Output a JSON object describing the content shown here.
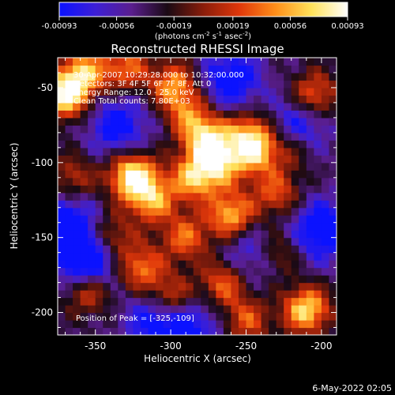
{
  "chart_data": {
    "type": "heatmap",
    "title": "Reconstructed RHESSI Image",
    "xlabel": "Heliocentric X (arcsec)",
    "ylabel": "Heliocentric Y (arcsec)",
    "xlim": [
      -375,
      -190
    ],
    "ylim": [
      -215,
      -30
    ],
    "x_ticks": [
      -350,
      -300,
      -250,
      -200
    ],
    "y_ticks": [
      -50,
      -100,
      -150,
      -200
    ],
    "colorbar": {
      "ticks": [
        "-0.00093",
        "-0.00056",
        "-0.00019",
        "0.00019",
        "0.00056",
        "0.00093"
      ],
      "range": [
        -0.00093,
        0.00093
      ],
      "unit_prefix": "(photons cm",
      "unit_exp1": "-2",
      "unit_mid1": " s",
      "unit_exp2": "-1",
      "unit_mid2": " asec",
      "unit_exp3": "-2",
      "unit_suffix": ")",
      "colors": [
        "#0b12ff",
        "#3d1fd6",
        "#5a1e8e",
        "#1a0a14",
        "#8a1d0a",
        "#e0370a",
        "#ff8f1a",
        "#ffe25a",
        "#ffffff"
      ]
    },
    "peak_position": [
      -325,
      -109
    ],
    "hotspots": [
      {
        "x": -370,
        "y": -55,
        "amp": 0.9
      },
      {
        "x": -358,
        "y": -40,
        "amp": 0.7
      },
      {
        "x": -330,
        "y": -37,
        "amp": 0.55
      },
      {
        "x": -298,
        "y": -48,
        "amp": 0.65
      },
      {
        "x": -288,
        "y": -68,
        "amp": 0.5
      },
      {
        "x": -205,
        "y": -55,
        "amp": 0.6
      },
      {
        "x": -248,
        "y": -78,
        "amp": 0.45
      },
      {
        "x": -275,
        "y": -85,
        "amp": 0.85
      },
      {
        "x": -285,
        "y": -110,
        "amp": 0.7
      },
      {
        "x": -325,
        "y": -109,
        "amp": 1.0
      },
      {
        "x": -312,
        "y": -125,
        "amp": 0.65
      },
      {
        "x": -268,
        "y": -102,
        "amp": 0.6
      },
      {
        "x": -245,
        "y": -92,
        "amp": 0.8
      },
      {
        "x": -230,
        "y": -120,
        "amp": 0.5
      },
      {
        "x": -260,
        "y": -135,
        "amp": 0.75
      },
      {
        "x": -290,
        "y": -150,
        "amp": 0.55
      },
      {
        "x": -340,
        "y": -150,
        "amp": 0.5
      },
      {
        "x": -320,
        "y": -170,
        "amp": 0.6
      },
      {
        "x": -355,
        "y": -185,
        "amp": 0.55
      },
      {
        "x": -300,
        "y": -190,
        "amp": 0.55
      },
      {
        "x": -265,
        "y": -180,
        "amp": 0.55
      },
      {
        "x": -230,
        "y": -160,
        "amp": 0.45
      },
      {
        "x": -210,
        "y": -198,
        "amp": 0.85
      },
      {
        "x": -250,
        "y": -205,
        "amp": 0.5
      },
      {
        "x": -220,
        "y": -90,
        "amp": 0.35
      },
      {
        "x": -365,
        "y": -110,
        "amp": 0.4
      }
    ],
    "coldspots": [
      {
        "x": -355,
        "y": -165,
        "amp": -0.8
      },
      {
        "x": -335,
        "y": -75,
        "amp": -0.5
      },
      {
        "x": -260,
        "y": -45,
        "amp": -0.55
      },
      {
        "x": -215,
        "y": -75,
        "amp": -0.5
      },
      {
        "x": -370,
        "y": -140,
        "amp": -0.55
      },
      {
        "x": -200,
        "y": -145,
        "amp": -0.6
      },
      {
        "x": -310,
        "y": -205,
        "amp": -0.5
      },
      {
        "x": -245,
        "y": -160,
        "amp": -0.4
      },
      {
        "x": -285,
        "y": -210,
        "amp": -0.4
      }
    ],
    "annotations": {
      "time_range": "30-Apr-2007 10:29:28.000 to 10:32:00.000",
      "detectors": "Detectors: 3F 4F 5F 6F 7F 8F, Att 0",
      "energy": "Energy Range: 12.0 - 25.0 keV",
      "clean": "Clean      Total counts: 7.80E+03",
      "peak": "Position of Peak = [-325,-109]"
    }
  },
  "footer": {
    "timestamp": "6-May-2022 02:05"
  }
}
